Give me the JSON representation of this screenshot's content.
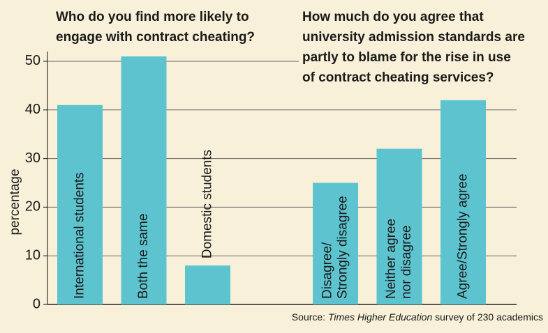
{
  "chart_data": {
    "type": "bar",
    "titles": [
      [
        "Who do you find more likely to",
        "engage with contract cheating?"
      ],
      [
        "How much do you agree that",
        "university admission standards are",
        "partly to blame for the rise in use",
        "of contract cheating services?"
      ]
    ],
    "ylabel": "percentage",
    "categories": [
      [
        "International students"
      ],
      [
        "Both the same"
      ],
      [
        "Domestic students"
      ],
      null,
      [
        "Disagree/",
        "Strongly disagree"
      ],
      [
        "Neither agree",
        "nor disagree"
      ],
      [
        "Agree/Strongly agree"
      ]
    ],
    "values": [
      41,
      51,
      8,
      null,
      25,
      32,
      42
    ],
    "color": "#5dc4cf",
    "ylim": [
      0,
      52
    ],
    "yticks": [
      0,
      10,
      20,
      30,
      40,
      50
    ],
    "grid": true,
    "source": {
      "prefix": "Source:",
      "publication": "Times Higher Education",
      "rest": "survey of 230 academics"
    }
  }
}
